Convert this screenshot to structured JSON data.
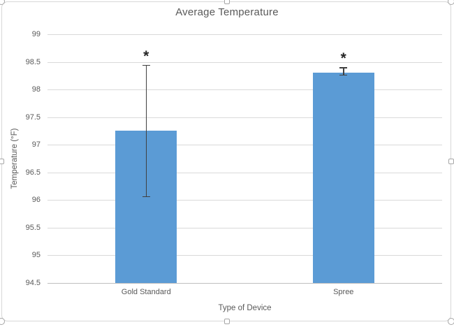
{
  "chart_data": {
    "type": "bar",
    "title": "Average Temperature",
    "xlabel": "Type of Device",
    "ylabel": "Temperature (°F)",
    "categories": [
      "Gold Standard",
      "Spree"
    ],
    "values": [
      97.25,
      98.3
    ],
    "error_bars": [
      {
        "low": 96.05,
        "high": 98.45
      },
      {
        "low": 98.25,
        "high": 98.4
      }
    ],
    "annotations": [
      "*",
      "*"
    ],
    "ylim": [
      94.5,
      99
    ],
    "ytick_step": 0.5,
    "grid": true,
    "legend": "none",
    "colors": {
      "bar": "#5b9bd5",
      "gridline": "#d9d9d9",
      "axis_line": "#bfbfbf",
      "text": "#595959",
      "error_bar": "#404040",
      "annotation": "#262626"
    }
  }
}
